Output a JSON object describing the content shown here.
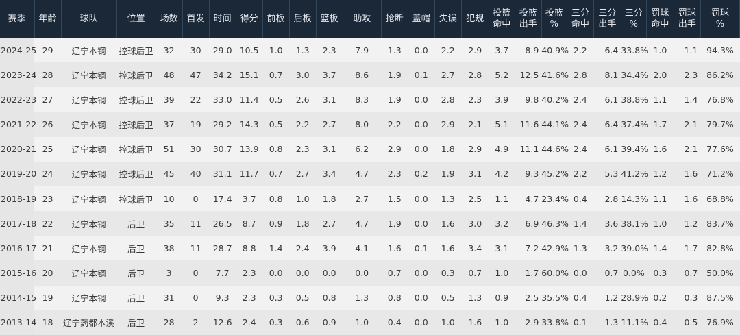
{
  "table": {
    "headers": [
      "赛季",
      "年龄",
      "球队",
      "位置",
      "场数",
      "首发",
      "时间",
      "得分",
      "前板",
      "后板",
      "篮板",
      "助攻",
      "抢断",
      "盖帽",
      "失误",
      "犯规",
      "投篮\n命中",
      "投篮\n出手",
      "投篮\n%",
      "三分\n命中",
      "三分\n出手",
      "三分\n%",
      "罚球\n命中",
      "罚球\n出手",
      "罚球\n%"
    ],
    "rows": [
      [
        "2024-25",
        "29",
        "辽宁本钢",
        "控球后卫",
        "32",
        "30",
        "29.0",
        "10.5",
        "1.0",
        "1.3",
        "2.3",
        "7.9",
        "1.3",
        "0.0",
        "2.2",
        "2.9",
        "3.7",
        "8.9",
        "40.9%",
        "2.2",
        "6.4",
        "33.8%",
        "1.0",
        "1.1",
        "94.3%"
      ],
      [
        "2023-24",
        "28",
        "辽宁本钢",
        "控球后卫",
        "48",
        "47",
        "34.2",
        "15.1",
        "0.7",
        "3.0",
        "3.7",
        "8.6",
        "1.9",
        "0.1",
        "2.7",
        "2.8",
        "5.2",
        "12.5",
        "41.6%",
        "2.8",
        "8.1",
        "34.4%",
        "2.0",
        "2.3",
        "86.2%"
      ],
      [
        "2022-23",
        "27",
        "辽宁本钢",
        "控球后卫",
        "39",
        "22",
        "33.0",
        "11.4",
        "0.5",
        "2.6",
        "3.1",
        "8.3",
        "1.9",
        "0.0",
        "2.8",
        "2.3",
        "3.9",
        "9.8",
        "40.2%",
        "2.4",
        "6.1",
        "38.8%",
        "1.1",
        "1.4",
        "76.8%"
      ],
      [
        "2021-22",
        "26",
        "辽宁本钢",
        "控球后卫",
        "37",
        "19",
        "29.2",
        "14.3",
        "0.5",
        "2.2",
        "2.7",
        "8.0",
        "2.2",
        "0.0",
        "2.9",
        "2.1",
        "5.1",
        "11.6",
        "44.1%",
        "2.4",
        "6.4",
        "37.4%",
        "1.7",
        "2.1",
        "79.7%"
      ],
      [
        "2020-21",
        "25",
        "辽宁本钢",
        "控球后卫",
        "51",
        "30",
        "30.7",
        "13.9",
        "0.8",
        "2.3",
        "3.1",
        "6.2",
        "2.9",
        "0.0",
        "1.8",
        "2.9",
        "4.9",
        "11.1",
        "44.6%",
        "2.4",
        "6.1",
        "39.4%",
        "1.6",
        "2.1",
        "77.6%"
      ],
      [
        "2019-20",
        "24",
        "辽宁本钢",
        "控球后卫",
        "45",
        "40",
        "31.1",
        "11.7",
        "0.7",
        "2.7",
        "3.4",
        "4.7",
        "2.3",
        "0.2",
        "1.9",
        "3.1",
        "4.2",
        "9.3",
        "45.2%",
        "2.2",
        "5.3",
        "41.2%",
        "1.2",
        "1.6",
        "71.2%"
      ],
      [
        "2018-19",
        "23",
        "辽宁本钢",
        "控球后卫",
        "10",
        "0",
        "17.4",
        "3.7",
        "0.8",
        "1.0",
        "1.8",
        "2.7",
        "1.5",
        "0.0",
        "1.3",
        "2.5",
        "1.1",
        "4.7",
        "23.4%",
        "0.4",
        "2.8",
        "14.3%",
        "1.1",
        "1.6",
        "68.8%"
      ],
      [
        "2017-18",
        "22",
        "辽宁本钢",
        "后卫",
        "35",
        "11",
        "26.5",
        "8.7",
        "0.9",
        "1.8",
        "2.7",
        "4.7",
        "1.9",
        "0.0",
        "1.6",
        "3.0",
        "3.2",
        "6.9",
        "46.3%",
        "1.4",
        "3.6",
        "38.1%",
        "1.0",
        "1.2",
        "83.7%"
      ],
      [
        "2016-17",
        "21",
        "辽宁本钢",
        "后卫",
        "38",
        "11",
        "28.7",
        "8.8",
        "1.4",
        "2.4",
        "3.9",
        "4.1",
        "1.6",
        "0.1",
        "1.6",
        "3.4",
        "3.1",
        "7.2",
        "42.9%",
        "1.3",
        "3.2",
        "39.0%",
        "1.4",
        "1.7",
        "82.8%"
      ],
      [
        "2015-16",
        "20",
        "辽宁本钢",
        "后卫",
        "3",
        "0",
        "7.7",
        "2.3",
        "0.0",
        "0.0",
        "0.0",
        "0.0",
        "0.7",
        "0.0",
        "0.3",
        "0.7",
        "1.0",
        "1.7",
        "60.0%",
        "0.0",
        "0.7",
        "0.0%",
        "0.3",
        "0.7",
        "50.0%"
      ],
      [
        "2014-15",
        "19",
        "辽宁本钢",
        "后卫",
        "31",
        "0",
        "9.3",
        "2.3",
        "0.3",
        "0.5",
        "0.8",
        "1.3",
        "0.8",
        "0.0",
        "0.5",
        "1.3",
        "0.9",
        "2.5",
        "35.5%",
        "0.4",
        "1.2",
        "28.9%",
        "0.2",
        "0.3",
        "87.5%"
      ],
      [
        "2013-14",
        "18",
        "辽宁药都本溪",
        "后卫",
        "28",
        "2",
        "12.6",
        "2.4",
        "0.3",
        "0.6",
        "0.9",
        "1.0",
        "0.4",
        "0.0",
        "1.0",
        "1.6",
        "1.0",
        "2.9",
        "33.8%",
        "0.1",
        "1.3",
        "11.1%",
        "0.4",
        "0.5",
        "76.9%"
      ]
    ]
  },
  "colors": {
    "header_bg": "#1a2838",
    "header_text": "#e6e9ee",
    "row_odd": "#f2f2f2",
    "row_even": "#e8e8e8"
  }
}
